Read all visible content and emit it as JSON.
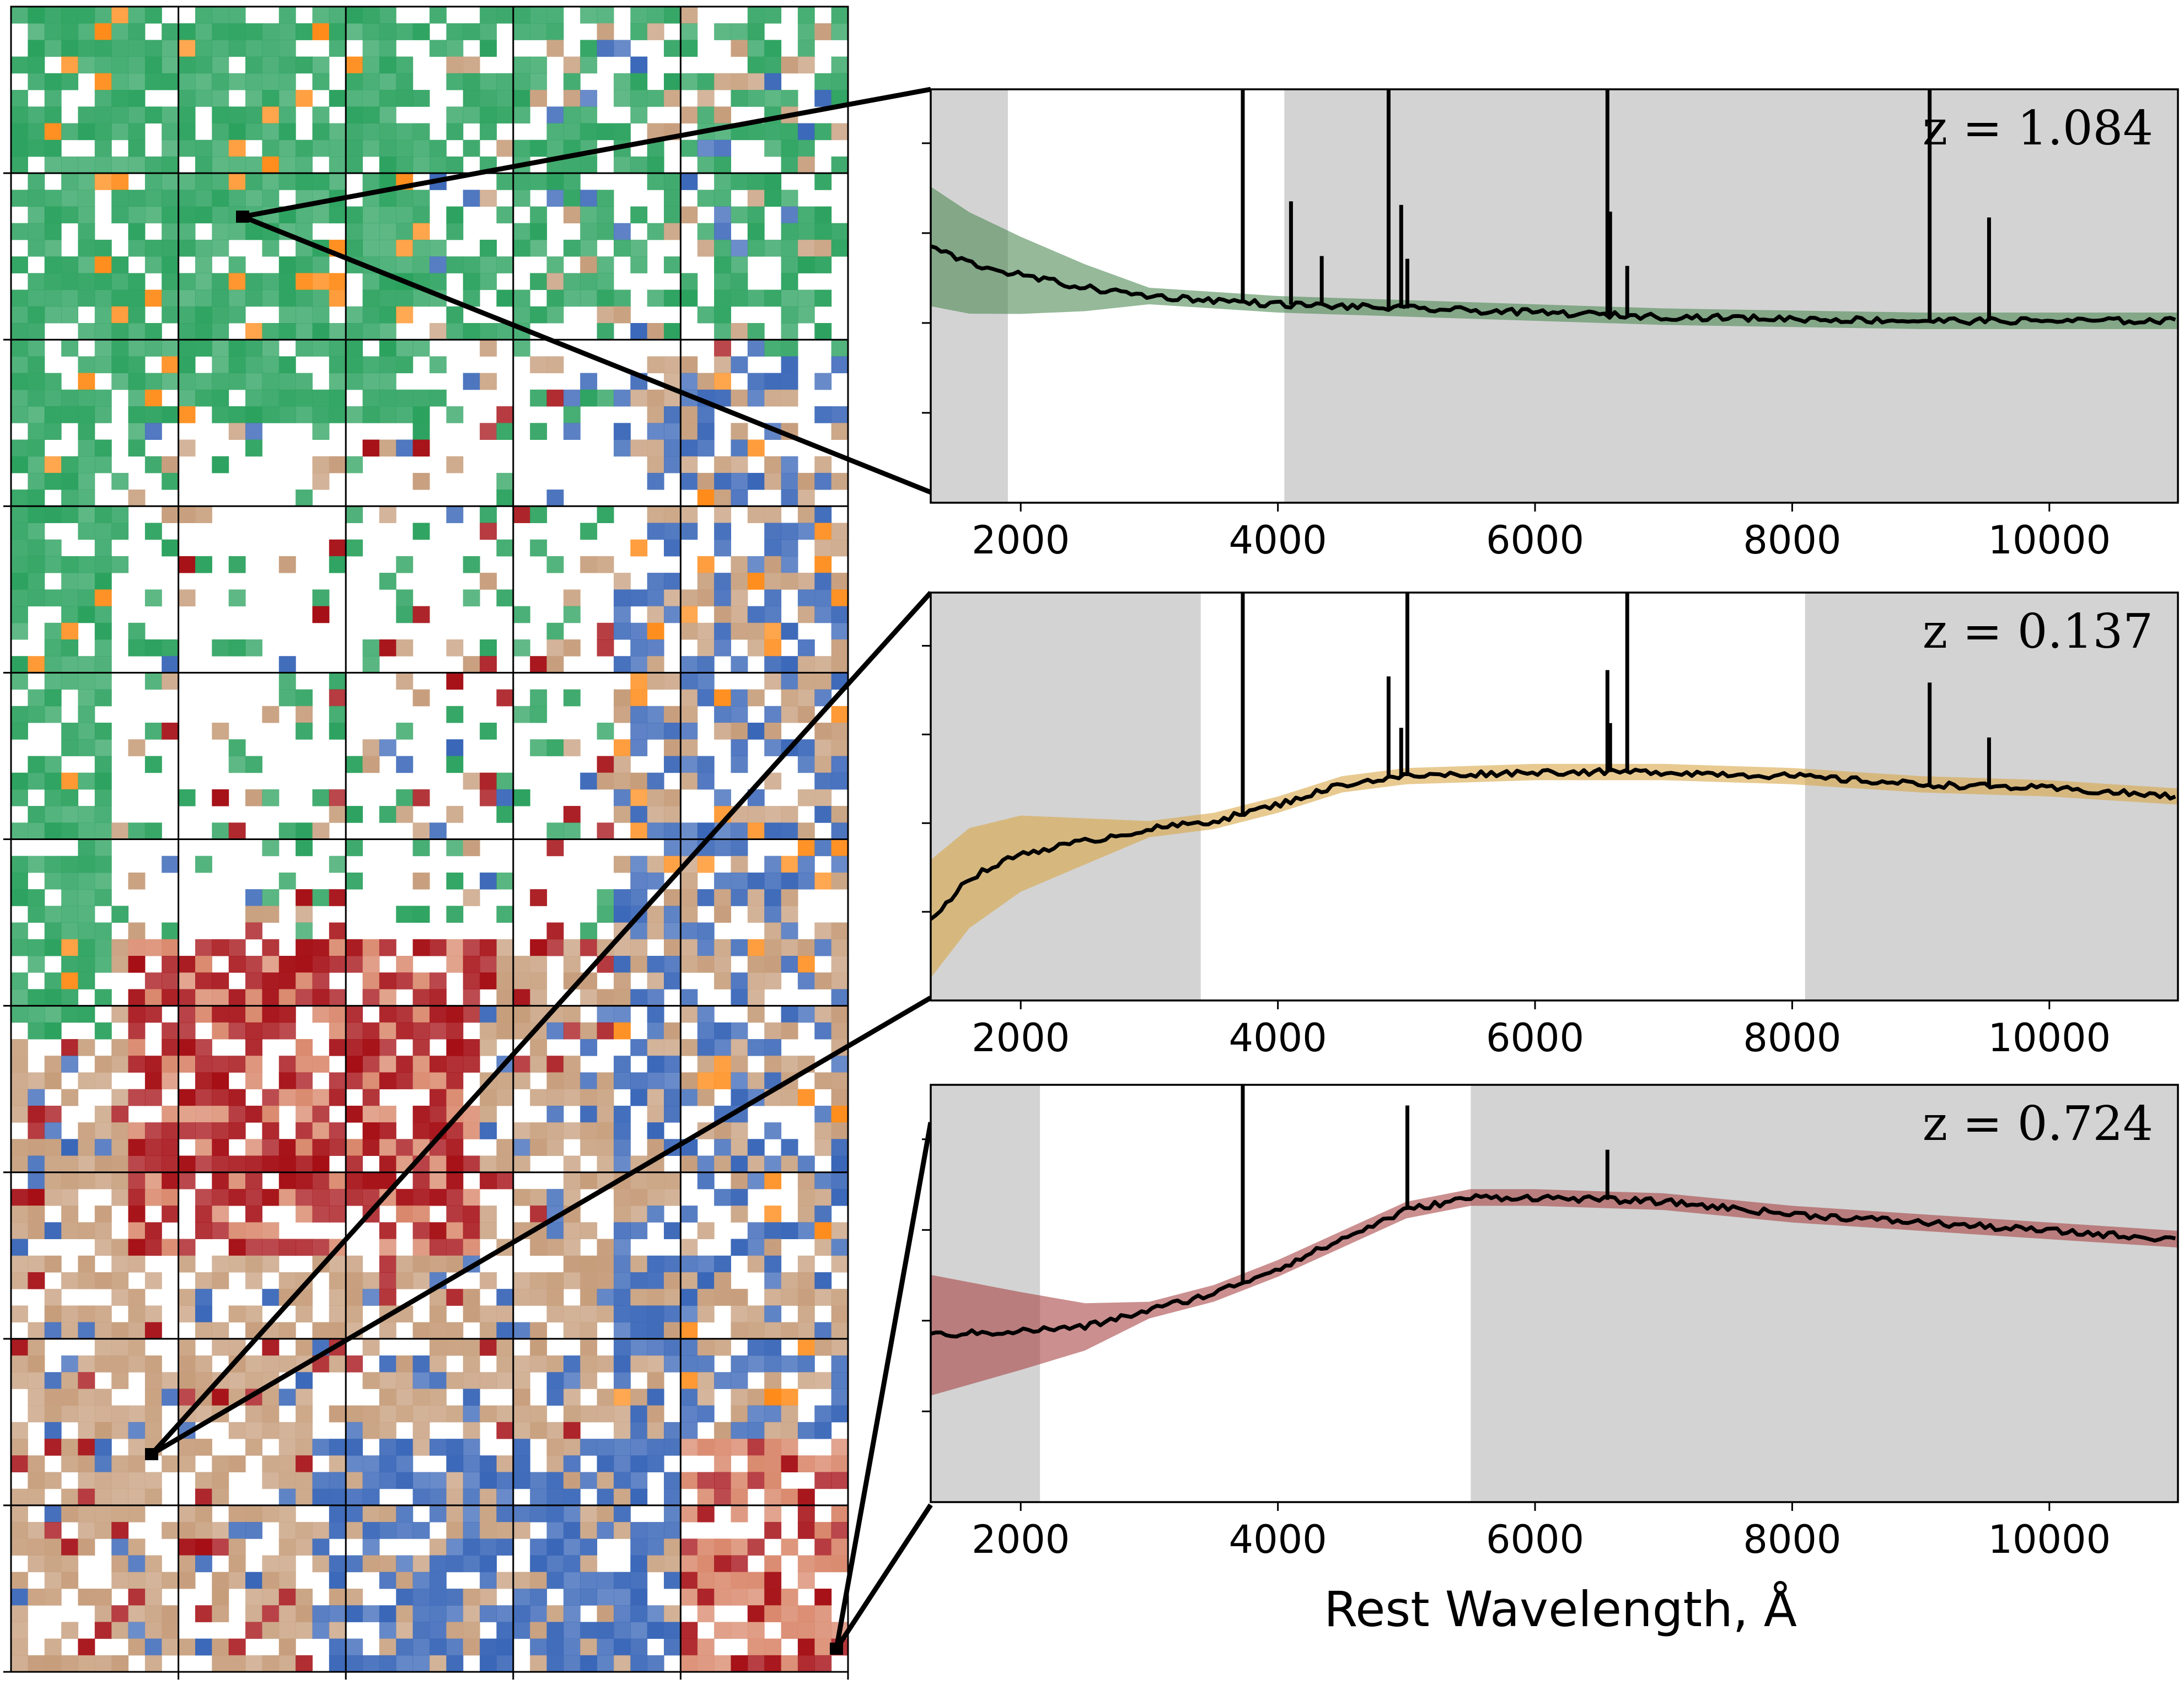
{
  "colors": {
    "green": "#2ca25f",
    "orange": "#ff8c1a",
    "blue": "#3a67b8",
    "tan": "#c79e7c",
    "red": "#a50f15",
    "salmon": "#d9876b",
    "gray_mask": "#d3d3d3",
    "spectrum_line": "#000000",
    "band_green": "#4f8a55",
    "band_gold": "#d9a648",
    "band_red": "#a84545"
  },
  "som_map": {
    "description": "",
    "rows": 10,
    "cols": 5
  },
  "chart_data": [
    {
      "type": "line",
      "panel": "top",
      "annotation": "z = 1.084",
      "xlabel": "",
      "ylabel": "",
      "xlim": [
        1300,
        11000
      ],
      "xticks": [
        2000,
        4000,
        6000,
        8000,
        10000
      ],
      "band_color": "green",
      "masked_ranges": [
        [
          1300,
          1900
        ],
        [
          4050,
          11000
        ]
      ],
      "emission_lines": [
        3727,
        4102,
        4341,
        4861,
        4959,
        5007,
        6563,
        6584,
        6717,
        9069,
        9531
      ],
      "series": [
        {
          "x": [
            1300,
            1600,
            2000,
            2500,
            3000,
            3500,
            4000,
            5000,
            6000,
            7000,
            8000,
            9000,
            10000,
            11000
          ],
          "values": [
            0.62,
            0.58,
            0.55,
            0.52,
            0.5,
            0.49,
            0.48,
            0.47,
            0.46,
            0.45,
            0.445,
            0.44,
            0.44,
            0.44
          ]
        }
      ]
    },
    {
      "type": "line",
      "panel": "middle",
      "annotation": "z = 0.137",
      "xlabel": "",
      "ylabel": "",
      "xlim": [
        1300,
        11000
      ],
      "xticks": [
        2000,
        4000,
        6000,
        8000,
        10000
      ],
      "band_color": "gold",
      "masked_ranges": [
        [
          1300,
          3400
        ],
        [
          8100,
          11000
        ]
      ],
      "emission_lines": [
        3727,
        4861,
        4959,
        5007,
        6563,
        6584,
        6717,
        9069,
        9531
      ],
      "series": [
        {
          "x": [
            1300,
            1600,
            2000,
            2500,
            3000,
            3500,
            4000,
            4500,
            5000,
            6000,
            7000,
            8000,
            9000,
            10000,
            11000
          ],
          "values": [
            0.2,
            0.3,
            0.36,
            0.39,
            0.42,
            0.44,
            0.48,
            0.53,
            0.55,
            0.56,
            0.56,
            0.55,
            0.53,
            0.52,
            0.5
          ]
        }
      ]
    },
    {
      "type": "line",
      "panel": "bottom",
      "annotation": "z = 0.724",
      "xlabel": "Rest Wavelength, Å",
      "ylabel": "",
      "xlim": [
        1300,
        11000
      ],
      "xticks": [
        2000,
        4000,
        6000,
        8000,
        10000
      ],
      "band_color": "red",
      "masked_ranges": [
        [
          1300,
          2150
        ],
        [
          5500,
          11000
        ]
      ],
      "emission_lines": [
        3727,
        5007,
        6563
      ],
      "series": [
        {
          "x": [
            1300,
            2000,
            2500,
            3000,
            3500,
            4000,
            4500,
            5000,
            5500,
            6000,
            7000,
            8000,
            9000,
            10000,
            11000
          ],
          "values": [
            0.4,
            0.41,
            0.42,
            0.46,
            0.5,
            0.56,
            0.63,
            0.7,
            0.73,
            0.73,
            0.72,
            0.69,
            0.67,
            0.65,
            0.63
          ]
        }
      ]
    }
  ],
  "axis_title": "Rest Wavelength, Å",
  "annotations": {
    "top": "z = 1.084",
    "middle": "z = 0.137",
    "bottom": "z = 0.724"
  }
}
